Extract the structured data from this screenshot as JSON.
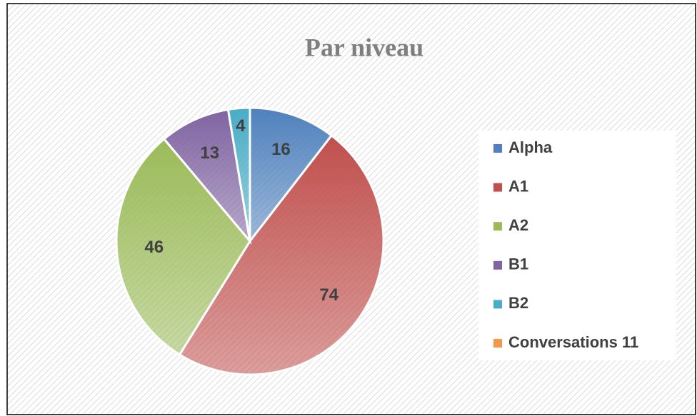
{
  "chart_data": {
    "type": "pie",
    "title": "Par niveau",
    "categories": [
      "Alpha",
      "A1",
      "A2",
      "B1",
      "B2",
      "Conversations 11"
    ],
    "values": [
      16,
      74,
      46,
      13,
      4,
      0
    ],
    "colors": [
      "#4f81bd",
      "#c0504d",
      "#9bbb59",
      "#8064a2",
      "#4bacc6",
      "#f79646"
    ],
    "legend": "right"
  }
}
